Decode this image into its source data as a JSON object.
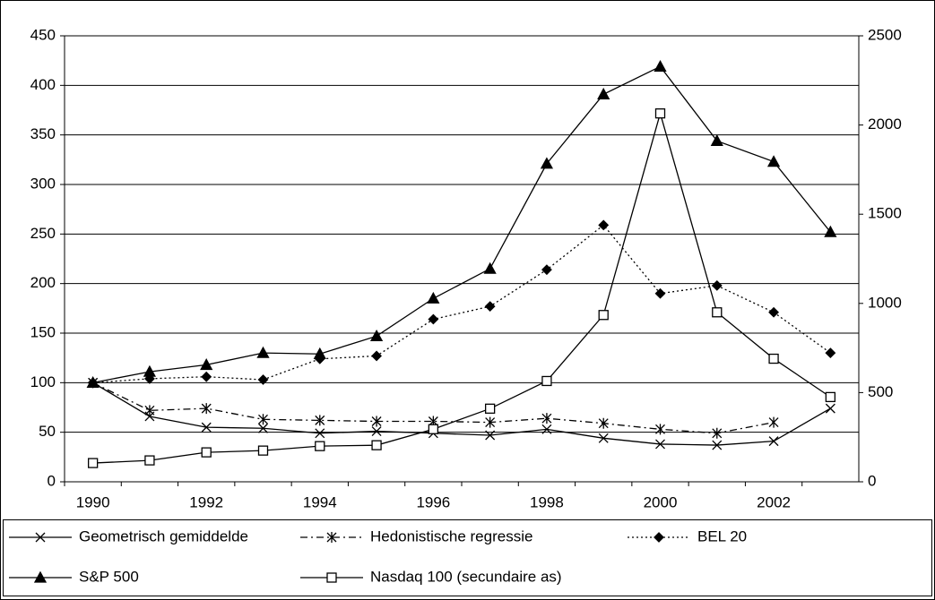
{
  "chart_data": {
    "type": "line",
    "categories": [
      "1990",
      null,
      "1992",
      null,
      "1994",
      null,
      "1996",
      null,
      "1998",
      null,
      "2000",
      null,
      "2002",
      null
    ],
    "ylim": [
      0,
      450
    ],
    "yticks": [
      0,
      50,
      100,
      150,
      200,
      250,
      300,
      350,
      400,
      450
    ],
    "y2lim": [
      0,
      2500
    ],
    "y2ticks": [
      0,
      500,
      1000,
      1500,
      2000,
      2500
    ],
    "grid": true,
    "legend": "bottom",
    "series": [
      {
        "name": "Geometrisch gemiddelde",
        "color": "#000000",
        "marker": "x",
        "dash": "solid",
        "values": [
          100,
          66,
          55,
          54,
          49,
          51,
          49,
          47,
          53,
          44,
          38,
          37,
          41,
          74
        ]
      },
      {
        "name": "Hedonistische regressie",
        "color": "#000000",
        "marker": "asterisk",
        "dash": "dashdot",
        "values": [
          100,
          72,
          74,
          63,
          62,
          61,
          61,
          60,
          64,
          59,
          53,
          49,
          60,
          null
        ]
      },
      {
        "name": "BEL 20",
        "color": "#000000",
        "marker": "diamond",
        "dash": "dotted",
        "values": [
          100,
          104,
          106,
          103,
          124,
          127,
          164,
          177,
          214,
          259,
          190,
          198,
          171,
          130
        ]
      },
      {
        "name": "S&P 500",
        "color": "#000000",
        "marker": "triangle",
        "dash": "solid",
        "values": [
          100,
          111,
          118,
          130,
          129,
          147,
          185,
          215,
          321,
          391,
          419,
          344,
          323,
          252
        ]
      },
      {
        "name": "Nasdaq 100 (secundaire as)",
        "color": "#000000",
        "marker": "square",
        "dash": "solid",
        "axis": "y2",
        "values": [
          105,
          120,
          165,
          175,
          200,
          205,
          295,
          410,
          565,
          935,
          2065,
          950,
          690,
          475
        ]
      }
    ]
  }
}
